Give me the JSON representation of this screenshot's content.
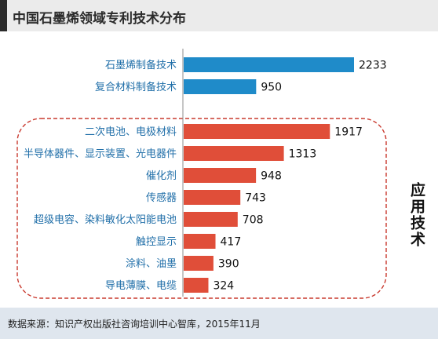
{
  "title": "中国石墨烯领域专利技术分布",
  "side_label": "应用技术",
  "source": "数据来源：知识产权出版社咨询培训中心智库，2015年11月",
  "colors": {
    "preparation": "#1f8bc9",
    "application": "#e04e39",
    "group_box": "#c93a2f",
    "axis": "#8c8c8c"
  },
  "chart_data": {
    "type": "bar",
    "orientation": "horizontal",
    "title": "中国石墨烯领域专利技术分布",
    "categories": [
      "石墨烯制备技术",
      "复合材料制备技术",
      "二次电池、电极材料",
      "半导体器件、显示装置、光电器件",
      "催化剂",
      "传感器",
      "超级电容、染料敏化太阳能电池",
      "触控显示",
      "涂料、油墨",
      "导电薄膜、电缆"
    ],
    "values": [
      2233,
      950,
      1917,
      1313,
      948,
      743,
      708,
      417,
      390,
      324
    ],
    "groups": [
      {
        "label": "",
        "color": "#1f8bc9",
        "indices": [
          0,
          1
        ]
      },
      {
        "label": "应用技术",
        "color": "#e04e39",
        "indices": [
          2,
          3,
          4,
          5,
          6,
          7,
          8,
          9
        ]
      }
    ],
    "xlim": [
      0,
      2233
    ],
    "data_labels": true,
    "grid": false,
    "legend": "none"
  }
}
